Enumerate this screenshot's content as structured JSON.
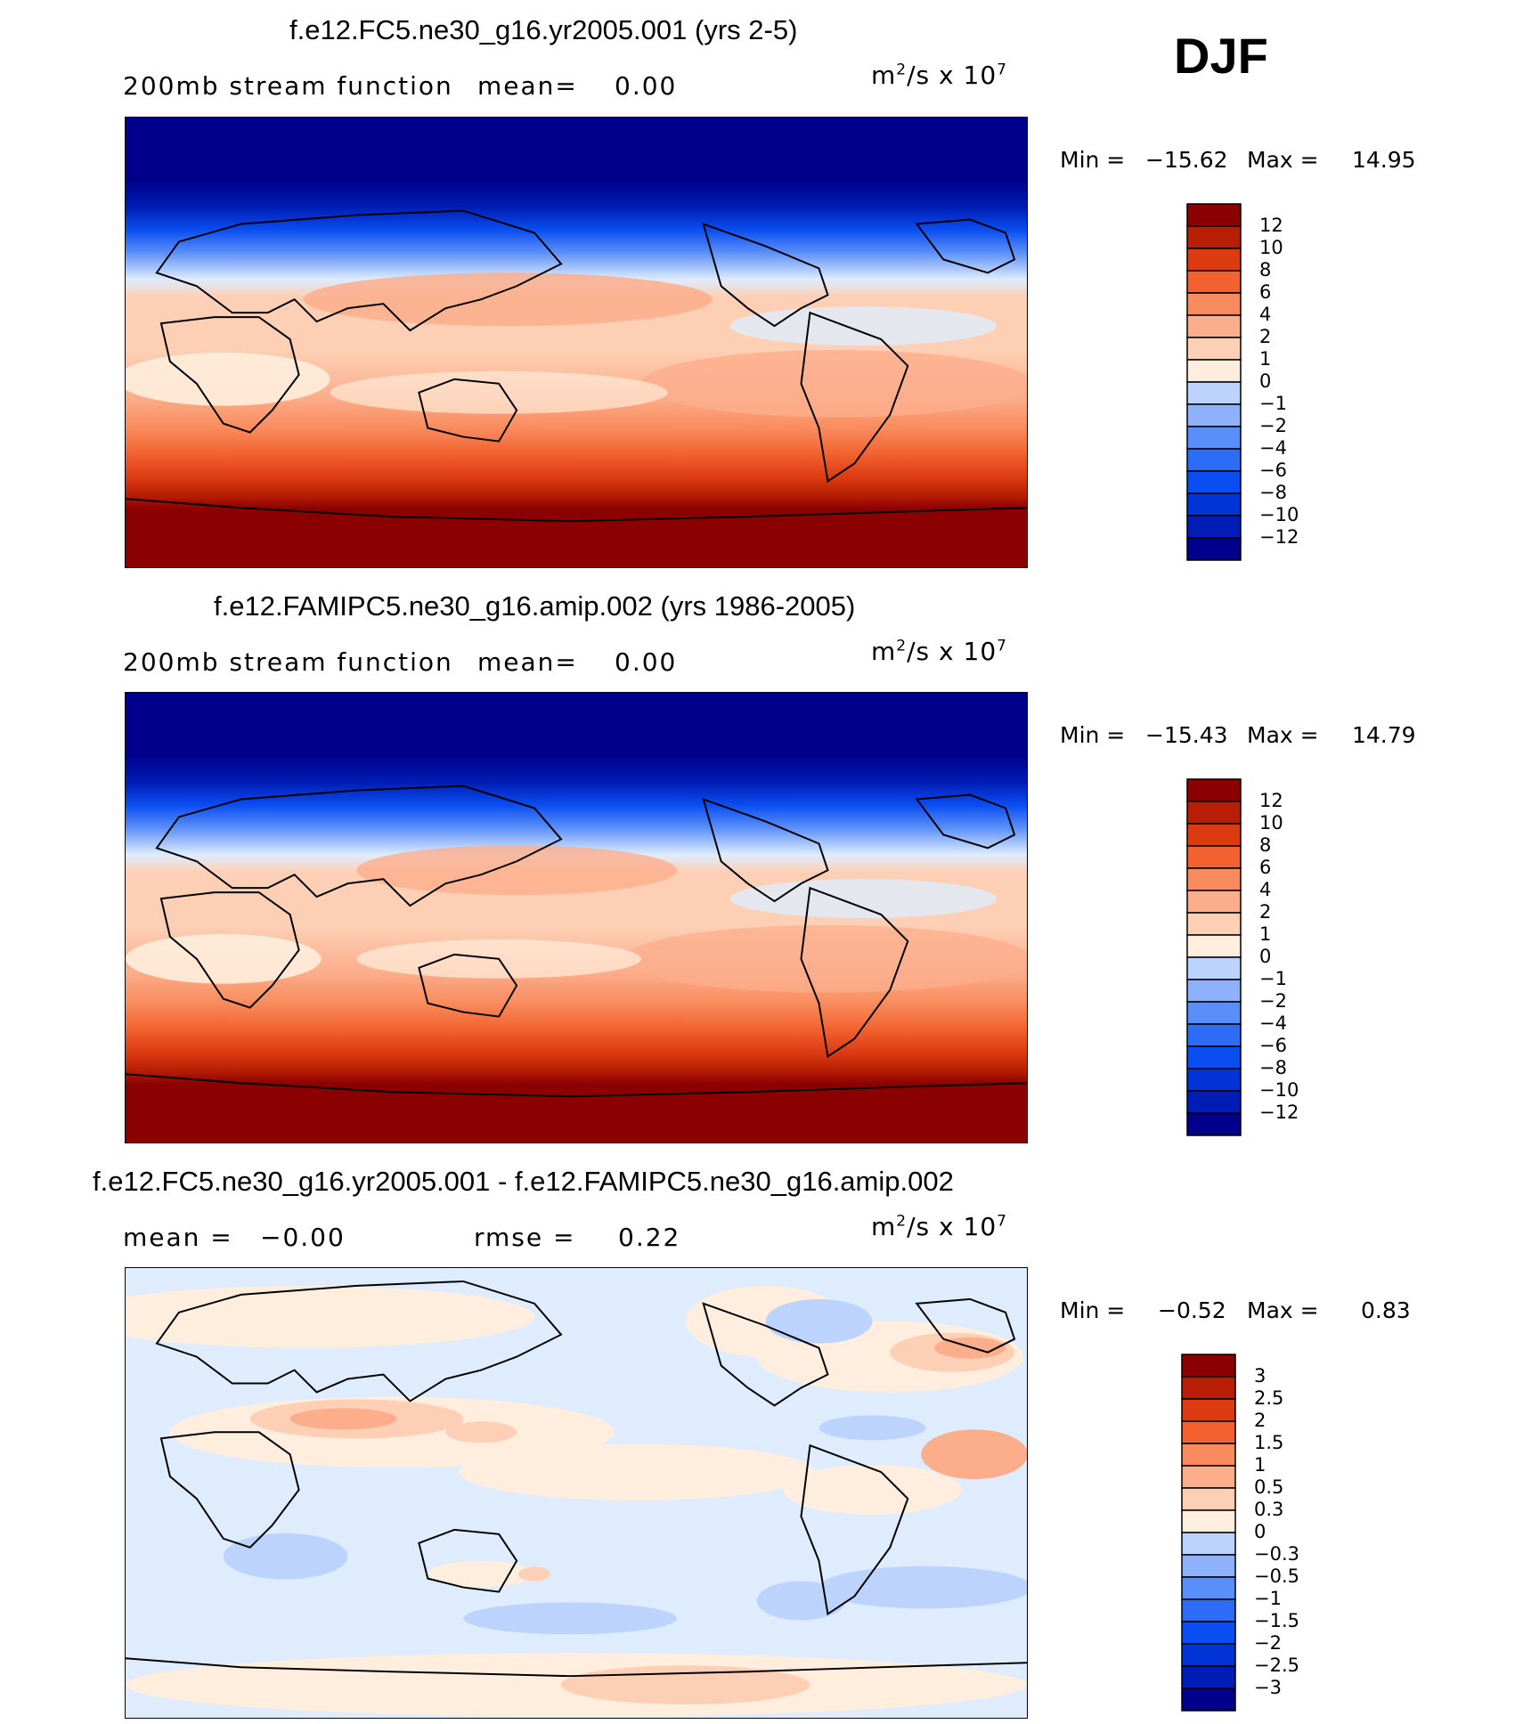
{
  "season": "DJF",
  "units_text": "m",
  "units_exp_a": "2",
  "units_mid": "/s x 10",
  "units_exp_b": "7",
  "colors": {
    "main": [
      "#00008c",
      "#001db5",
      "#0034d6",
      "#0a4ef2",
      "#2d6cf7",
      "#5a8ff9",
      "#8db1fb",
      "#bcd4fd",
      "#deecfe",
      "#ffeedd",
      "#fdcfb4",
      "#fcae8c",
      "#f98c5e",
      "#f2612f",
      "#dc3b12",
      "#b71e05",
      "#8b0000"
    ],
    "diff": [
      "#00008c",
      "#001db5",
      "#0034d6",
      "#0a4ef2",
      "#2d6cf7",
      "#5a8ff9",
      "#8db1fb",
      "#bcd4fd",
      "#deecfe",
      "#ffeedd",
      "#fdcfb4",
      "#fcae8c",
      "#f98c5e",
      "#f2612f",
      "#dc3b12",
      "#b71e05",
      "#8b0000"
    ]
  },
  "panels": [
    {
      "title": "f.e12.FC5.ne30_g16.yr2005.001 (yrs 2-5)",
      "left_label": "200mb stream function",
      "mean_label": "mean=",
      "mean_value": "0.00",
      "min_label": "Min =",
      "min_value": "−15.62",
      "max_label": "Max =",
      "max_value": "14.95",
      "colorbar_labels": [
        "12",
        "10",
        "8",
        "6",
        "4",
        "2",
        "1",
        "0",
        "−1",
        "−2",
        "−4",
        "−6",
        "−8",
        "−10",
        "−12"
      ]
    },
    {
      "title": "f.e12.FAMIPC5.ne30_g16.amip.002 (yrs 1986-2005)",
      "left_label": "200mb stream function",
      "mean_label": "mean=",
      "mean_value": "0.00",
      "min_label": "Min =",
      "min_value": "−15.43",
      "max_label": "Max =",
      "max_value": "14.79",
      "colorbar_labels": [
        "12",
        "10",
        "8",
        "6",
        "4",
        "2",
        "1",
        "0",
        "−1",
        "−2",
        "−4",
        "−6",
        "−8",
        "−10",
        "−12"
      ]
    },
    {
      "title": "f.e12.FC5.ne30_g16.yr2005.001 - f.e12.FAMIPC5.ne30_g16.amip.002",
      "mean_label": "mean =",
      "mean_value": "−0.00",
      "rmse_label": "rmse =",
      "rmse_value": "0.22",
      "min_label": "Min =",
      "min_value": "−0.52",
      "max_label": "Max =",
      "max_value": "0.83",
      "colorbar_labels": [
        "3",
        "2.5",
        "2",
        "1.5",
        "1",
        "0.5",
        "0.3",
        "0",
        "−0.3",
        "−0.5",
        "−1",
        "−1.5",
        "−2",
        "−2.5",
        "−3"
      ]
    }
  ]
}
